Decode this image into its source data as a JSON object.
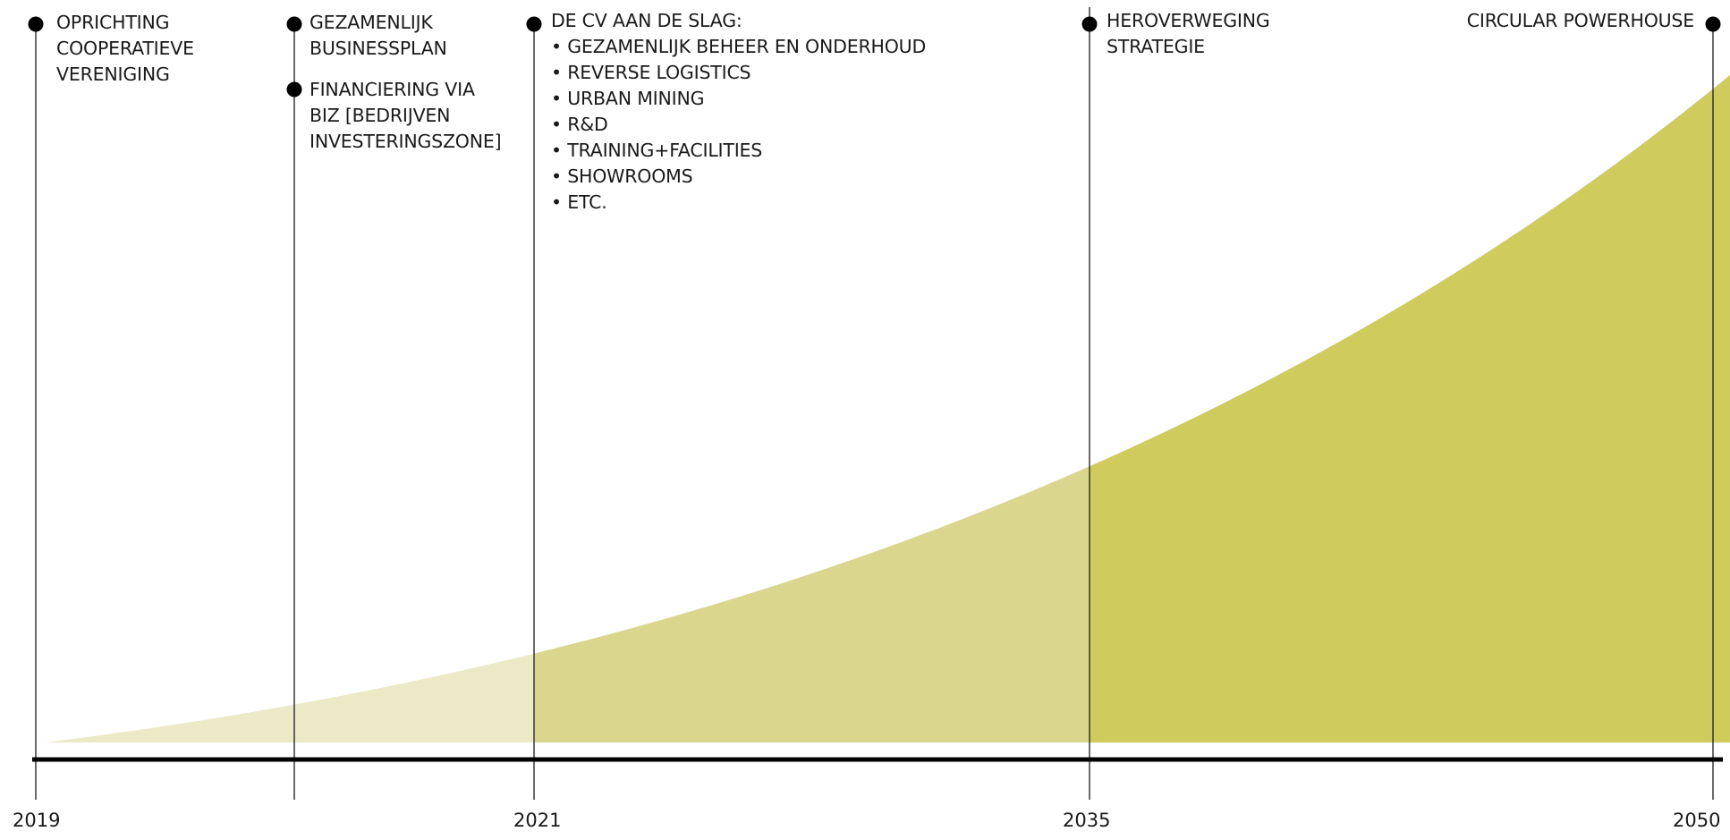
{
  "colors": {
    "line": "#2a2a2a",
    "axis": "#000000",
    "dot": "#000000",
    "band_1": "#ece9c6",
    "band_2": "#dbd68e",
    "band_3": "#cfcb5c",
    "background": "#ffffff"
  },
  "timeline": {
    "years": [
      "2019",
      "2021",
      "2035",
      "2050"
    ],
    "milestones": {
      "oprichting": {
        "lines": [
          "OPRICHTING",
          "COOPERATIEVE",
          "VERENIGING"
        ]
      },
      "businessplan": {
        "lines": [
          "GEZAMENLIJK",
          "BUSINESSPLAN"
        ]
      },
      "financiering": {
        "lines": [
          "FINANCIERING VIA",
          "BIZ [BEDRIJVEN",
          "INVESTERINGSZONE]"
        ]
      },
      "cv_aan_de_slag": {
        "title": "DE CV AAN DE SLAG:",
        "items": [
          "• GEZAMENLIJK BEHEER EN ONDERHOUD",
          "• REVERSE LOGISTICS",
          "• URBAN MINING",
          "• R&D",
          "• TRAINING+FACILITIES",
          "• SHOWROOMS",
          "• ETC."
        ]
      },
      "heroverweging": {
        "lines": [
          "HEROVERWEGING",
          "STRATEGIE"
        ]
      },
      "powerhouse": {
        "lines": [
          "CIRCULAR POWERHOUSE"
        ]
      }
    }
  }
}
